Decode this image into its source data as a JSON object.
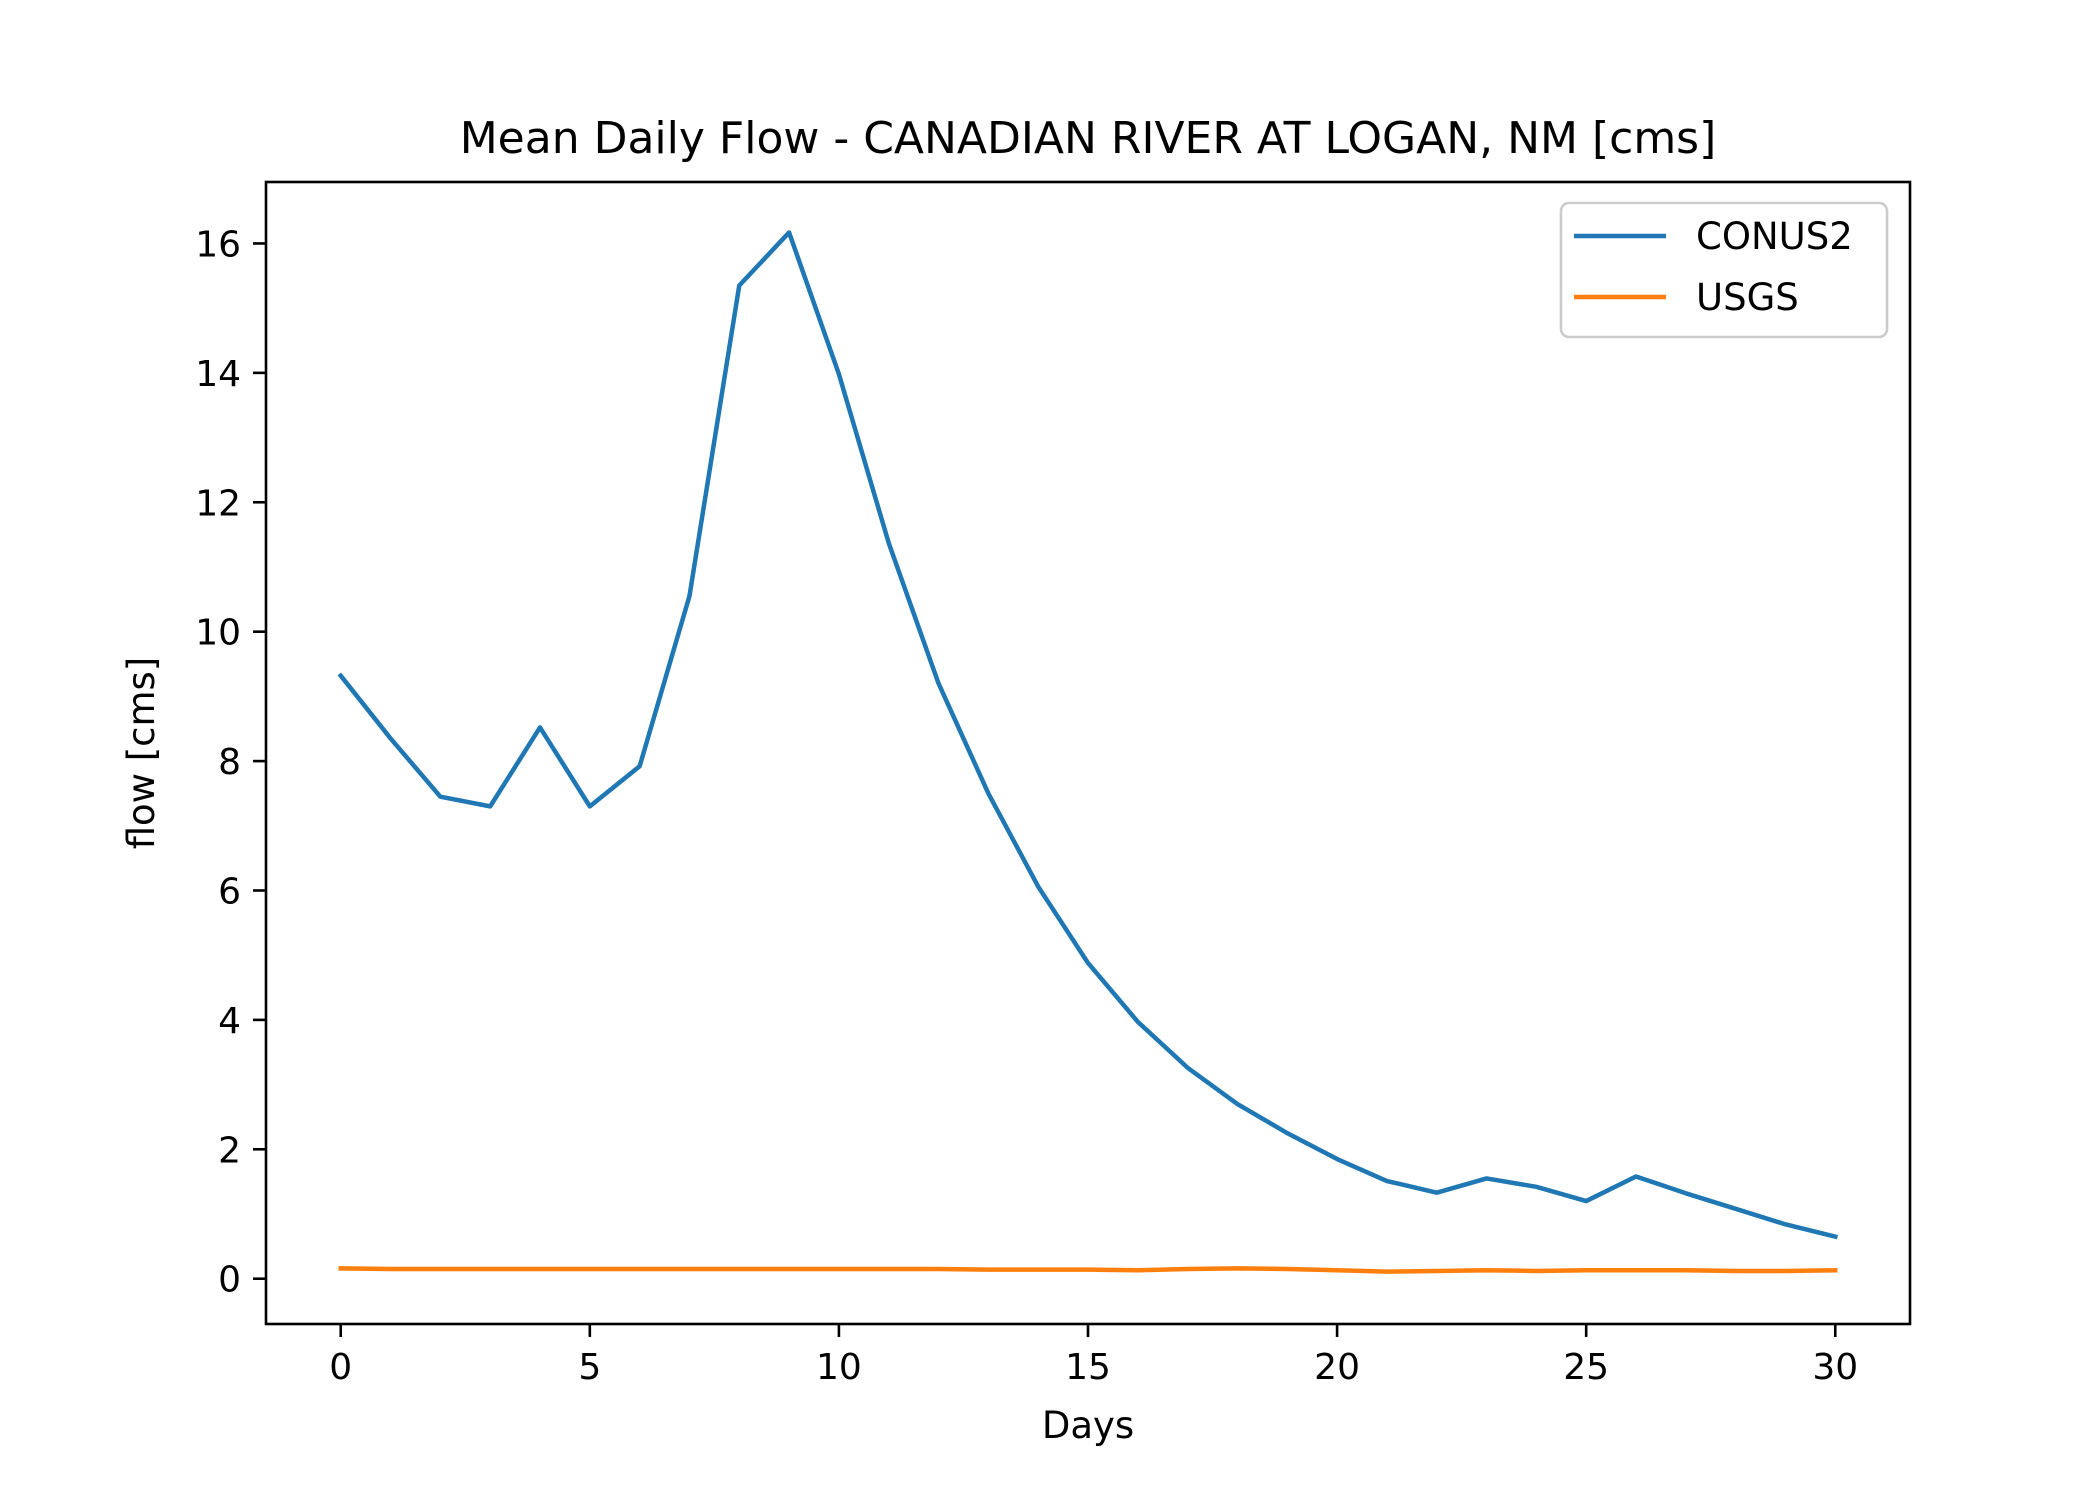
{
  "chart_data": {
    "type": "line",
    "title": "Mean Daily Flow - CANADIAN RIVER AT LOGAN, NM [cms]",
    "xlabel": "Days",
    "ylabel": "flow [cms]",
    "xlim": [
      -1.5,
      31.5
    ],
    "ylim": [
      -0.7,
      16.95
    ],
    "xticks": [
      0,
      5,
      10,
      15,
      20,
      25,
      30
    ],
    "yticks": [
      0,
      2,
      4,
      6,
      8,
      10,
      12,
      14,
      16
    ],
    "grid": false,
    "legend_position": "upper-right",
    "x": [
      0,
      1,
      2,
      3,
      4,
      5,
      6,
      7,
      8,
      9,
      10,
      11,
      12,
      13,
      14,
      15,
      16,
      17,
      18,
      19,
      20,
      21,
      22,
      23,
      24,
      25,
      26,
      27,
      28,
      29,
      30
    ],
    "series": [
      {
        "name": "CONUS2",
        "color": "#1f77b4",
        "values": [
          9.32,
          8.35,
          7.45,
          7.3,
          8.52,
          7.3,
          7.92,
          10.55,
          15.35,
          16.17,
          13.98,
          11.37,
          9.2,
          7.5,
          6.06,
          4.88,
          3.97,
          3.26,
          2.7,
          2.25,
          1.85,
          1.51,
          1.33,
          1.55,
          1.42,
          1.2,
          1.58,
          1.32,
          1.08,
          0.84,
          0.65
        ]
      },
      {
        "name": "USGS",
        "color": "#ff7f0e",
        "values": [
          0.16,
          0.15,
          0.15,
          0.15,
          0.15,
          0.15,
          0.15,
          0.15,
          0.15,
          0.15,
          0.15,
          0.15,
          0.15,
          0.14,
          0.14,
          0.14,
          0.13,
          0.15,
          0.16,
          0.15,
          0.13,
          0.11,
          0.12,
          0.13,
          0.12,
          0.13,
          0.13,
          0.13,
          0.12,
          0.12,
          0.13
        ]
      }
    ]
  }
}
